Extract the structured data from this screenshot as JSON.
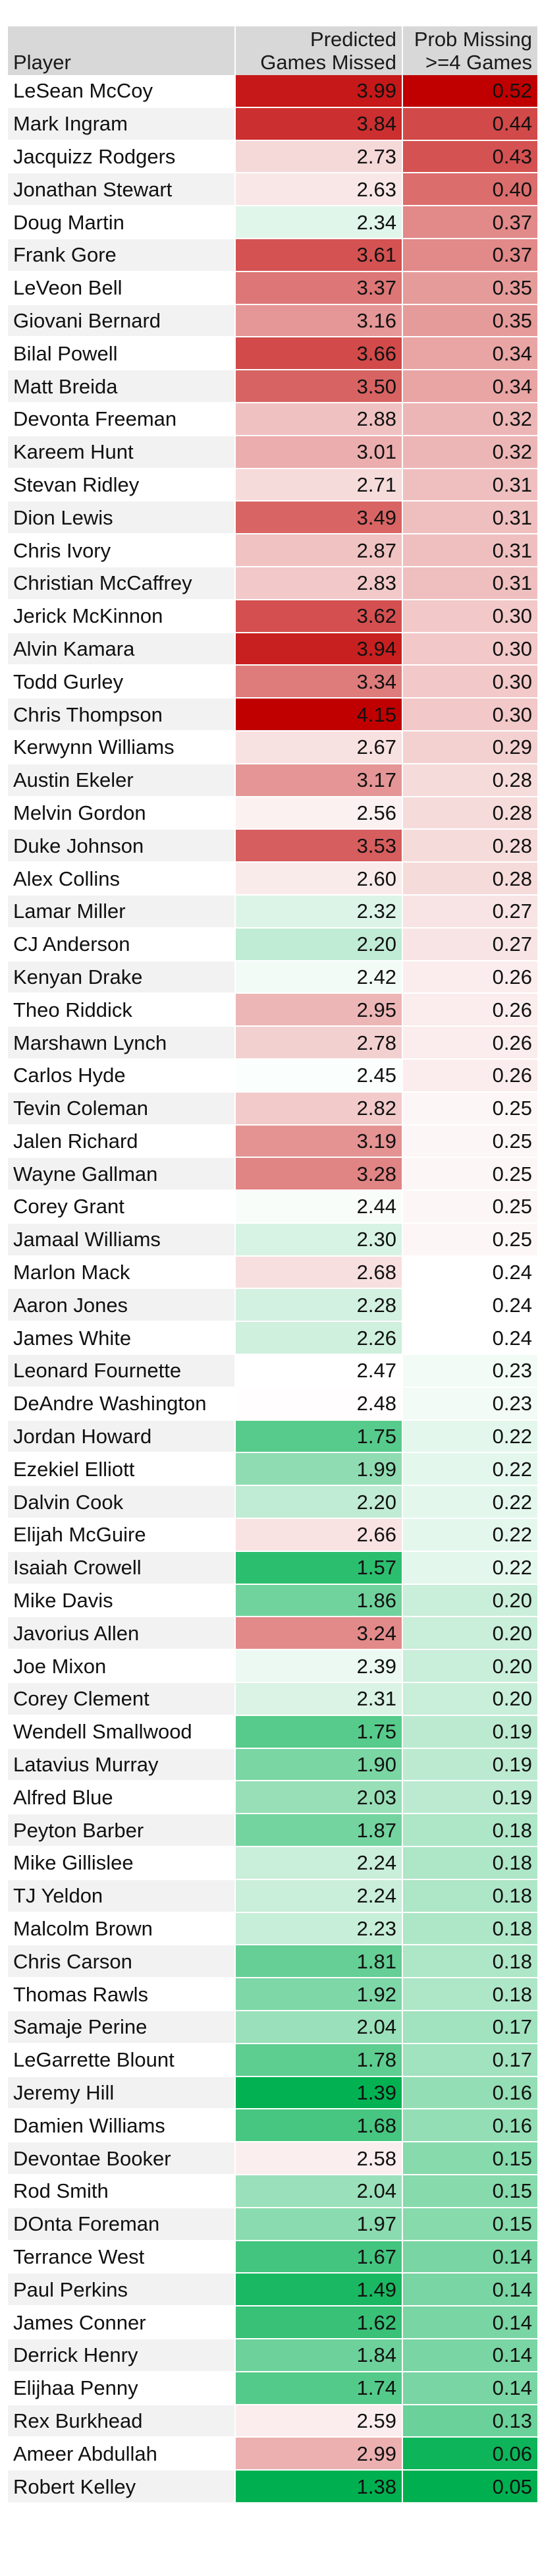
{
  "table": {
    "headers": {
      "player": "Player",
      "games": [
        "Predicted",
        "Games Missed"
      ],
      "prob": [
        "Prob Missing",
        ">=4 Games"
      ]
    },
    "colors": {
      "high": "#c00000",
      "mid": "#ffffff",
      "low": "#00b050"
    },
    "rows": [
      {
        "player": "LeSean McCoy",
        "games": "3.99",
        "prob": "0.52"
      },
      {
        "player": "Mark Ingram",
        "games": "3.84",
        "prob": "0.44"
      },
      {
        "player": "Jacquizz Rodgers",
        "games": "2.73",
        "prob": "0.43"
      },
      {
        "player": "Jonathan Stewart",
        "games": "2.63",
        "prob": "0.40"
      },
      {
        "player": "Doug Martin",
        "games": "2.34",
        "prob": "0.37"
      },
      {
        "player": "Frank Gore",
        "games": "3.61",
        "prob": "0.37"
      },
      {
        "player": "LeVeon Bell",
        "games": "3.37",
        "prob": "0.35"
      },
      {
        "player": "Giovani Bernard",
        "games": "3.16",
        "prob": "0.35"
      },
      {
        "player": "Bilal Powell",
        "games": "3.66",
        "prob": "0.34"
      },
      {
        "player": "Matt Breida",
        "games": "3.50",
        "prob": "0.34"
      },
      {
        "player": "Devonta Freeman",
        "games": "2.88",
        "prob": "0.32"
      },
      {
        "player": "Kareem Hunt",
        "games": "3.01",
        "prob": "0.32"
      },
      {
        "player": "Stevan Ridley",
        "games": "2.71",
        "prob": "0.31"
      },
      {
        "player": "Dion Lewis",
        "games": "3.49",
        "prob": "0.31"
      },
      {
        "player": "Chris Ivory",
        "games": "2.87",
        "prob": "0.31"
      },
      {
        "player": "Christian McCaffrey",
        "games": "2.83",
        "prob": "0.31"
      },
      {
        "player": "Jerick McKinnon",
        "games": "3.62",
        "prob": "0.30"
      },
      {
        "player": "Alvin Kamara",
        "games": "3.94",
        "prob": "0.30"
      },
      {
        "player": "Todd Gurley",
        "games": "3.34",
        "prob": "0.30"
      },
      {
        "player": "Chris Thompson",
        "games": "4.15",
        "prob": "0.30"
      },
      {
        "player": "Kerwynn Williams",
        "games": "2.67",
        "prob": "0.29"
      },
      {
        "player": "Austin Ekeler",
        "games": "3.17",
        "prob": "0.28"
      },
      {
        "player": "Melvin Gordon",
        "games": "2.56",
        "prob": "0.28"
      },
      {
        "player": "Duke Johnson",
        "games": "3.53",
        "prob": "0.28"
      },
      {
        "player": "Alex Collins",
        "games": "2.60",
        "prob": "0.28"
      },
      {
        "player": "Lamar Miller",
        "games": "2.32",
        "prob": "0.27"
      },
      {
        "player": "CJ Anderson",
        "games": "2.20",
        "prob": "0.27"
      },
      {
        "player": "Kenyan Drake",
        "games": "2.42",
        "prob": "0.26"
      },
      {
        "player": "Theo Riddick",
        "games": "2.95",
        "prob": "0.26"
      },
      {
        "player": "Marshawn Lynch",
        "games": "2.78",
        "prob": "0.26"
      },
      {
        "player": "Carlos Hyde",
        "games": "2.45",
        "prob": "0.26"
      },
      {
        "player": "Tevin Coleman",
        "games": "2.82",
        "prob": "0.25"
      },
      {
        "player": "Jalen Richard",
        "games": "3.19",
        "prob": "0.25"
      },
      {
        "player": "Wayne Gallman",
        "games": "3.28",
        "prob": "0.25"
      },
      {
        "player": "Corey Grant",
        "games": "2.44",
        "prob": "0.25"
      },
      {
        "player": "Jamaal Williams",
        "games": "2.30",
        "prob": "0.25"
      },
      {
        "player": "Marlon Mack",
        "games": "2.68",
        "prob": "0.24"
      },
      {
        "player": "Aaron Jones",
        "games": "2.28",
        "prob": "0.24"
      },
      {
        "player": "James White",
        "games": "2.26",
        "prob": "0.24"
      },
      {
        "player": "Leonard Fournette",
        "games": "2.47",
        "prob": "0.23"
      },
      {
        "player": "DeAndre Washington",
        "games": "2.48",
        "prob": "0.23"
      },
      {
        "player": "Jordan Howard",
        "games": "1.75",
        "prob": "0.22"
      },
      {
        "player": "Ezekiel Elliott",
        "games": "1.99",
        "prob": "0.22"
      },
      {
        "player": "Dalvin Cook",
        "games": "2.20",
        "prob": "0.22"
      },
      {
        "player": "Elijah McGuire",
        "games": "2.66",
        "prob": "0.22"
      },
      {
        "player": "Isaiah Crowell",
        "games": "1.57",
        "prob": "0.22"
      },
      {
        "player": "Mike Davis",
        "games": "1.86",
        "prob": "0.20"
      },
      {
        "player": "Javorius Allen",
        "games": "3.24",
        "prob": "0.20"
      },
      {
        "player": "Joe Mixon",
        "games": "2.39",
        "prob": "0.20"
      },
      {
        "player": "Corey Clement",
        "games": "2.31",
        "prob": "0.20"
      },
      {
        "player": "Wendell Smallwood",
        "games": "1.75",
        "prob": "0.19"
      },
      {
        "player": "Latavius Murray",
        "games": "1.90",
        "prob": "0.19"
      },
      {
        "player": "Alfred Blue",
        "games": "2.03",
        "prob": "0.19"
      },
      {
        "player": "Peyton Barber",
        "games": "1.87",
        "prob": "0.18"
      },
      {
        "player": "Mike Gillislee",
        "games": "2.24",
        "prob": "0.18"
      },
      {
        "player": "TJ Yeldon",
        "games": "2.24",
        "prob": "0.18"
      },
      {
        "player": "Malcolm Brown",
        "games": "2.23",
        "prob": "0.18"
      },
      {
        "player": "Chris Carson",
        "games": "1.81",
        "prob": "0.18"
      },
      {
        "player": "Thomas Rawls",
        "games": "1.92",
        "prob": "0.18"
      },
      {
        "player": "Samaje Perine",
        "games": "2.04",
        "prob": "0.17"
      },
      {
        "player": "LeGarrette Blount",
        "games": "1.78",
        "prob": "0.17"
      },
      {
        "player": "Jeremy Hill",
        "games": "1.39",
        "prob": "0.16"
      },
      {
        "player": "Damien Williams",
        "games": "1.68",
        "prob": "0.16"
      },
      {
        "player": "Devontae Booker",
        "games": "2.58",
        "prob": "0.15"
      },
      {
        "player": "Rod Smith",
        "games": "2.04",
        "prob": "0.15"
      },
      {
        "player": "DOnta Foreman",
        "games": "1.97",
        "prob": "0.15"
      },
      {
        "player": "Terrance West",
        "games": "1.67",
        "prob": "0.14"
      },
      {
        "player": "Paul Perkins",
        "games": "1.49",
        "prob": "0.14"
      },
      {
        "player": "James Conner",
        "games": "1.62",
        "prob": "0.14"
      },
      {
        "player": "Derrick Henry",
        "games": "1.84",
        "prob": "0.14"
      },
      {
        "player": "Elijhaa Penny",
        "games": "1.74",
        "prob": "0.14"
      },
      {
        "player": "Rex Burkhead",
        "games": "2.59",
        "prob": "0.13"
      },
      {
        "player": "Ameer Abdullah",
        "games": "2.99",
        "prob": "0.06"
      },
      {
        "player": "Robert Kelley",
        "games": "1.38",
        "prob": "0.05"
      }
    ]
  }
}
